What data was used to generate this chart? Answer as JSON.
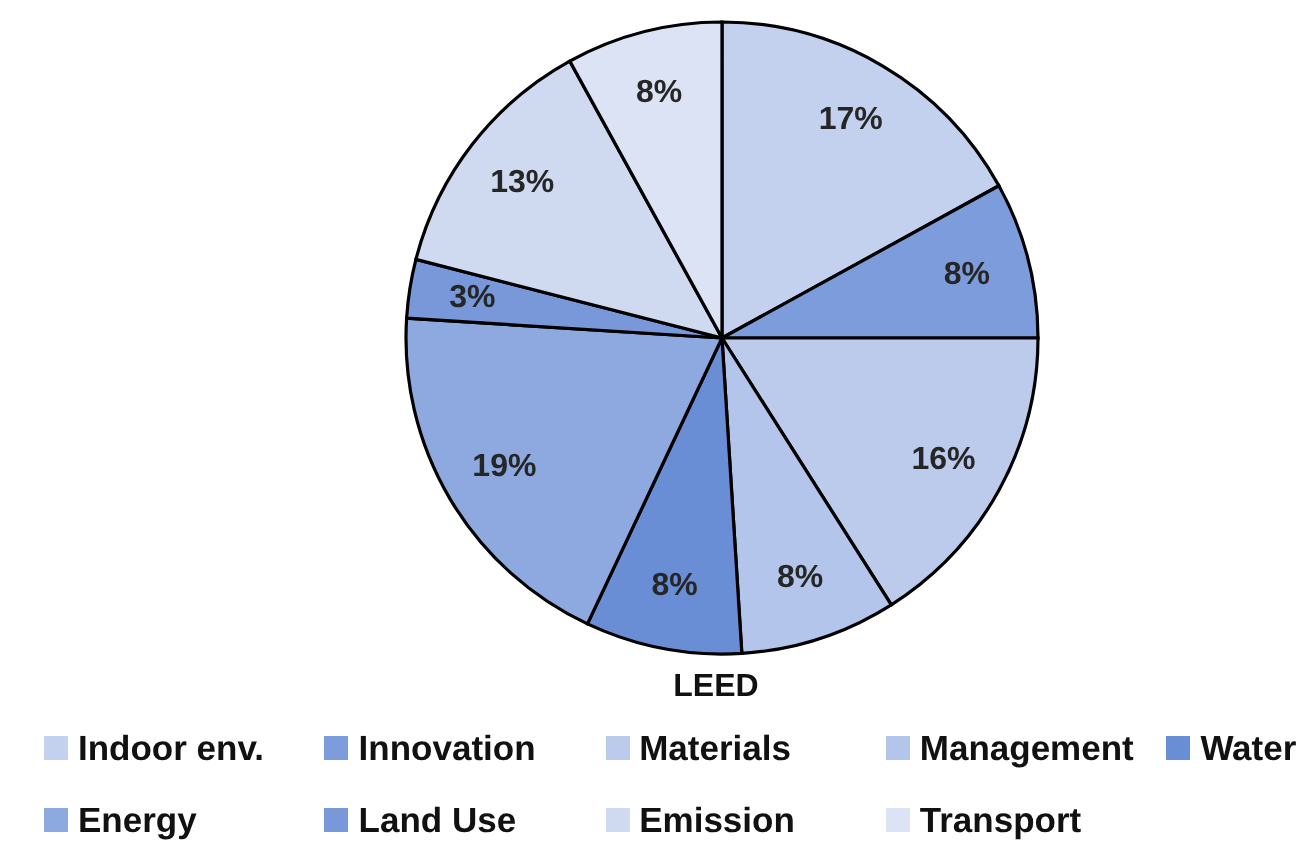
{
  "chart_data": {
    "type": "pie",
    "title": "LEED",
    "categories": [
      "Indoor env.",
      "Innovation",
      "Materials",
      "Management",
      "Water",
      "Energy",
      "Land Use",
      "Emission",
      "Transport"
    ],
    "values": [
      17,
      8,
      16,
      8,
      8,
      19,
      3,
      13,
      8
    ],
    "value_labels": [
      "17%",
      "8%",
      "16%",
      "8%",
      "8%",
      "19%",
      "3%",
      "13%",
      "8%"
    ],
    "colors": [
      "#c3d1ee",
      "#7d9cdb",
      "#bccbeb",
      "#b3c5ea",
      "#6a8ed5",
      "#8ea9e0",
      "#7898d9",
      "#cfdaf1",
      "#dbe3f4"
    ],
    "legend": "bottom"
  }
}
